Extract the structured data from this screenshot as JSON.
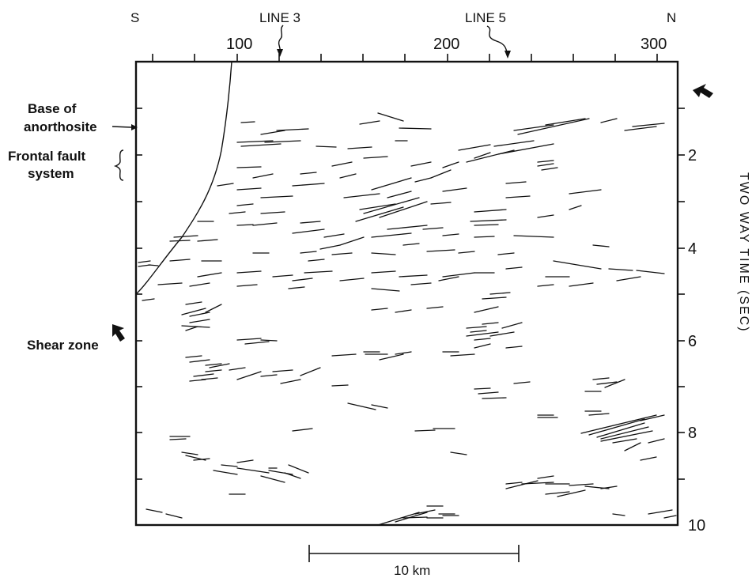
{
  "figure": {
    "compass": {
      "left": "S",
      "right": "N"
    },
    "top_axis": {
      "ticks": [
        "100",
        "200",
        "300"
      ]
    },
    "right_axis": {
      "ticks": [
        "2",
        "4",
        "6",
        "8",
        "10"
      ],
      "title": "TWO WAY TIME (SEC)"
    },
    "line_markers": [
      {
        "label": "LINE 3"
      },
      {
        "label": "LINE 5"
      }
    ],
    "annotations": {
      "base_of_anorthosite": [
        "Base of",
        "anorthosite"
      ],
      "frontal_fault_system": [
        "Frontal fault",
        "system"
      ],
      "shear_zone": "Shear zone"
    },
    "scale_bar": {
      "label": "10 km"
    }
  }
}
